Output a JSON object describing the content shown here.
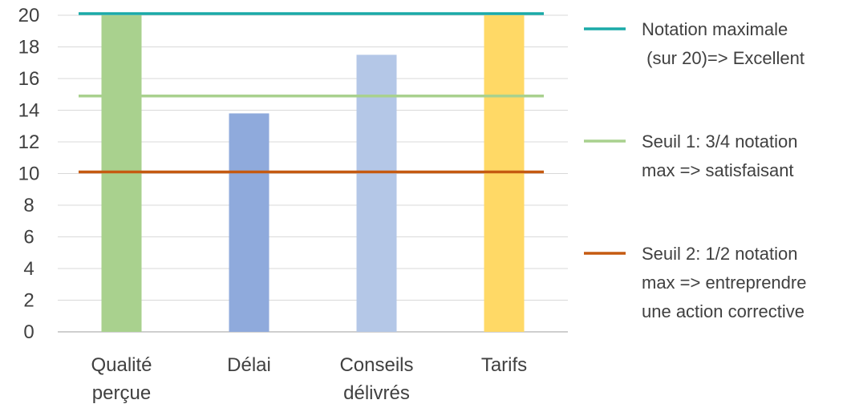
{
  "chart_data": {
    "type": "bar",
    "title": "",
    "xlabel": "",
    "ylabel": "",
    "ylim": [
      0,
      20
    ],
    "yticks": [
      0,
      2,
      4,
      6,
      8,
      10,
      12,
      14,
      16,
      18,
      20
    ],
    "grid": true,
    "legend_position": "right",
    "categories": [
      {
        "lines": [
          "Qualité",
          "perçue"
        ],
        "value": 20.0,
        "color": "#A9D18E"
      },
      {
        "lines": [
          "Délai"
        ],
        "value": 13.8,
        "color": "#8FAADC"
      },
      {
        "lines": [
          "Conseils",
          "délivrés"
        ],
        "value": 17.5,
        "color": "#B4C7E7"
      },
      {
        "lines": [
          "Tarifs"
        ],
        "value": 20.0,
        "color": "#FFD966"
      }
    ],
    "reference_lines": [
      {
        "value": 20.1,
        "color": "#1AAAA8",
        "label_lines": [
          "Notation maximale",
          " (sur 20)=> Excellent"
        ]
      },
      {
        "value": 14.9,
        "color": "#A9D18E",
        "label_lines": [
          "Seuil 1: 3/4 notation",
          "max => satisfaisant"
        ]
      },
      {
        "value": 10.1,
        "color": "#C55A11",
        "label_lines": [
          "Seuil 2: 1/2 notation",
          "max => entreprendre",
          "une action corrective"
        ]
      }
    ]
  }
}
